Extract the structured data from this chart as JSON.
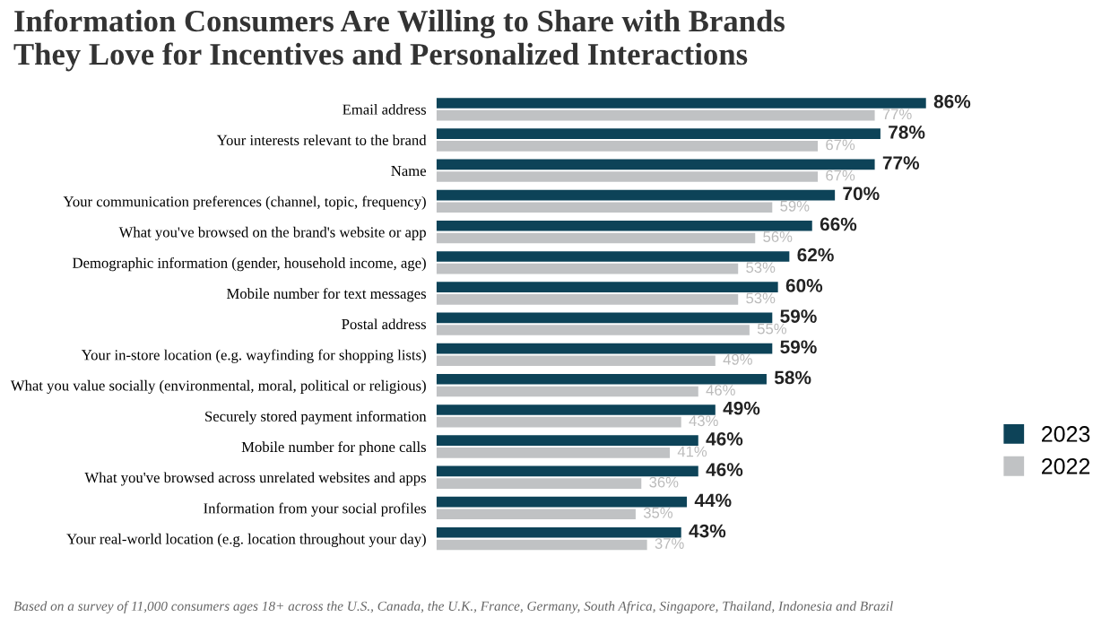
{
  "chart_data": {
    "type": "bar",
    "orientation": "horizontal",
    "title": "Information Consumers Are Willing to Share with Brands\nThey Love for Incentives and Personalized Interactions",
    "categories": [
      "Email address",
      "Your interests relevant to the brand",
      "Name",
      "Your communication preferences (channel, topic, frequency)",
      "What you've browsed on the brand's website or app",
      "Demographic information (gender, household income, age)",
      "Mobile number for text messages",
      "Postal address",
      "Your in-store location (e.g. wayfinding for shopping lists)",
      "What you value socially (environmental, moral, political or religious)",
      "Securely stored payment information",
      "Mobile number for phone calls",
      "What you've browsed across unrelated websites and apps",
      "Information from your social profiles",
      "Your real-world location (e.g. location throughout your day)"
    ],
    "series": [
      {
        "name": "2023",
        "color": "#0d4358",
        "values": [
          86,
          78,
          77,
          70,
          66,
          62,
          60,
          59,
          59,
          58,
          49,
          46,
          46,
          44,
          43
        ],
        "value_labels": [
          "86%",
          "78%",
          "77%",
          "70%",
          "66%",
          "62%",
          "60%",
          "59%",
          "59%",
          "58%",
          "49%",
          "46%",
          "46%",
          "44%",
          "43%"
        ]
      },
      {
        "name": "2022",
        "color": "#c0c2c4",
        "values": [
          77,
          67,
          67,
          59,
          56,
          53,
          53,
          55,
          49,
          46,
          43,
          41,
          36,
          35,
          37
        ],
        "value_labels": [
          "77%",
          "67%",
          "67%",
          "59%",
          "56%",
          "53%",
          "53%",
          "55%",
          "49%",
          "46%",
          "43%",
          "41%",
          "36%",
          "35%",
          "37%"
        ]
      }
    ],
    "legend": "bottom right",
    "grid": false,
    "annotations": [
      "Based on a survey of 11,000 consumers ages 18+ across the U.S., Canada, the U.K., France, Germany, South Africa, Singapore, Thailand, Indonesia and Brazil"
    ]
  }
}
